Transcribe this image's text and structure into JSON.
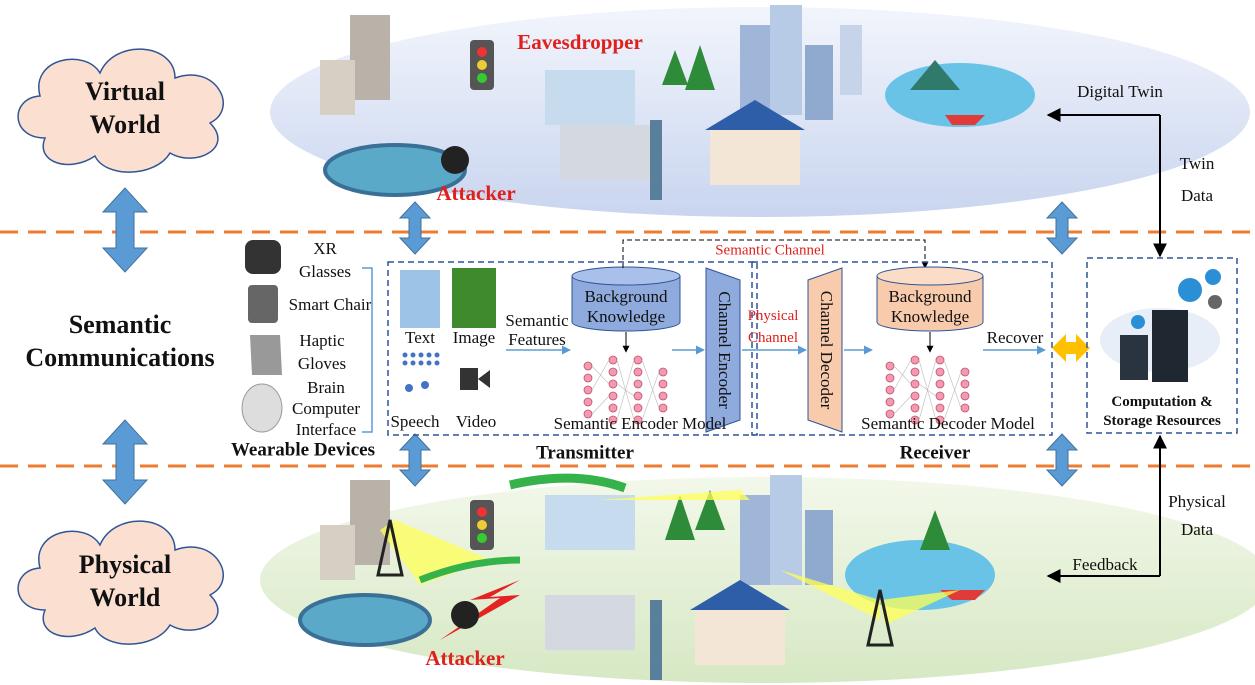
{
  "virtual_world": {
    "label": [
      "Virtual",
      "World"
    ],
    "eavesdropper": "Eavesdropper",
    "attacker": "Attacker"
  },
  "semantic_communications": {
    "label": [
      "Semantic",
      "Communications"
    ]
  },
  "physical_world": {
    "label": [
      "Physical",
      "World"
    ],
    "attacker": "Attacker"
  },
  "wearable_devices": {
    "title": "Wearable Devices",
    "items": [
      [
        "XR",
        "Glasses"
      ],
      [
        "Smart Chair"
      ],
      [
        "Haptic",
        "Gloves"
      ],
      [
        "Brain",
        "Computer",
        "Interface"
      ]
    ]
  },
  "transmitter": {
    "title": "Transmitter",
    "modalities": [
      "Text",
      "Image",
      "Speech",
      "Video"
    ],
    "features": [
      "Semantic",
      "Features"
    ],
    "knowledge": [
      "Background",
      "Knowledge"
    ],
    "encoder": "Channel Encoder",
    "model": "Semantic Encoder Model"
  },
  "channels": {
    "semantic": "Semantic Channel",
    "physical": [
      "Physical",
      "Channel"
    ]
  },
  "receiver": {
    "title": "Receiver",
    "decoder": "Channel Decoder",
    "knowledge": [
      "Background",
      "Knowledge"
    ],
    "recover": "Recover",
    "model": "Semantic Decoder Model"
  },
  "resources": {
    "label": [
      "Computation &",
      "Storage Resources"
    ]
  },
  "links": {
    "digital_twin": "Digital Twin",
    "twin_data": [
      "Twin",
      "Data"
    ],
    "physical_data": [
      "Physical",
      "Data"
    ],
    "feedback": "Feedback"
  }
}
